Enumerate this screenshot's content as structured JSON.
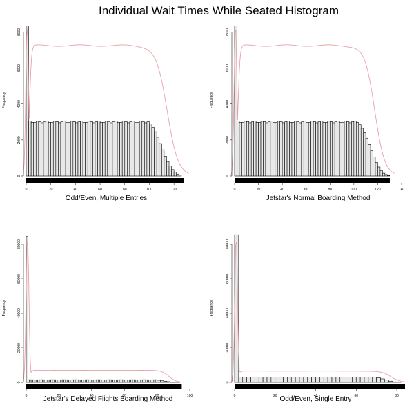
{
  "figure": {
    "title": "Individual Wait Times While Seated Histogram",
    "density_color": "#e8a0a8",
    "bar_fill": "#e8e8e8",
    "bar_stroke": "#000000"
  },
  "chart_data": [
    {
      "type": "bar",
      "title": "",
      "xlabel": "Odd/Even, Multiple Entries",
      "ylabel": "Frequency",
      "xlim": [
        0,
        130
      ],
      "ylim": [
        0,
        8400
      ],
      "xticks": [
        0,
        20,
        40,
        60,
        80,
        100,
        120
      ],
      "yticks": [
        0,
        2000,
        4000,
        6000,
        8000
      ],
      "bin_width": 2,
      "first_bin": {
        "x0": 0,
        "x1": 2,
        "value": 8350
      },
      "plateau": {
        "from": 2,
        "to": 100,
        "value": 3000
      },
      "tail": [
        {
          "x0": 100,
          "x1": 102,
          "value": 2900
        },
        {
          "x0": 102,
          "x1": 104,
          "value": 2700
        },
        {
          "x0": 104,
          "x1": 106,
          "value": 2450
        },
        {
          "x0": 106,
          "x1": 108,
          "value": 2150
        },
        {
          "x0": 108,
          "x1": 110,
          "value": 1800
        },
        {
          "x0": 110,
          "x1": 112,
          "value": 1450
        },
        {
          "x0": 112,
          "x1": 114,
          "value": 1100
        },
        {
          "x0": 114,
          "x1": 116,
          "value": 800
        },
        {
          "x0": 116,
          "x1": 118,
          "value": 550
        },
        {
          "x0": 118,
          "x1": 120,
          "value": 350
        },
        {
          "x0": 120,
          "x1": 122,
          "value": 200
        },
        {
          "x0": 122,
          "x1": 124,
          "value": 100
        },
        {
          "x0": 124,
          "x1": 126,
          "value": 50
        }
      ],
      "density_peak": 8400,
      "density_plateau": 7250,
      "density_end": 132,
      "rug_end": 128
    },
    {
      "type": "bar",
      "title": "",
      "xlabel": "Jetstar's Normal Boarding Method",
      "ylabel": "Frequency",
      "xlim": [
        0,
        140
      ],
      "ylim": [
        0,
        8400
      ],
      "xticks": [
        0,
        20,
        40,
        60,
        80,
        100,
        120,
        140
      ],
      "yticks": [
        0,
        2000,
        4000,
        6000,
        8000
      ],
      "bin_width": 2,
      "first_bin": {
        "x0": 0,
        "x1": 2,
        "value": 8350
      },
      "plateau": {
        "from": 2,
        "to": 104,
        "value": 3000
      },
      "tail": [
        {
          "x0": 104,
          "x1": 106,
          "value": 2850
        },
        {
          "x0": 106,
          "x1": 108,
          "value": 2650
        },
        {
          "x0": 108,
          "x1": 110,
          "value": 2400
        },
        {
          "x0": 110,
          "x1": 112,
          "value": 2100
        },
        {
          "x0": 112,
          "x1": 114,
          "value": 1750
        },
        {
          "x0": 114,
          "x1": 116,
          "value": 1400
        },
        {
          "x0": 116,
          "x1": 118,
          "value": 1050
        },
        {
          "x0": 118,
          "x1": 120,
          "value": 750
        },
        {
          "x0": 120,
          "x1": 122,
          "value": 500
        },
        {
          "x0": 122,
          "x1": 124,
          "value": 300
        },
        {
          "x0": 124,
          "x1": 126,
          "value": 150
        },
        {
          "x0": 126,
          "x1": 128,
          "value": 80
        },
        {
          "x0": 128,
          "x1": 130,
          "value": 30
        }
      ],
      "density_peak": 8400,
      "density_plateau": 7250,
      "density_end": 134,
      "rug_end": 130
    },
    {
      "type": "bar",
      "title": "",
      "xlabel": "Jetstar's Delayed Flights Boarding Method",
      "ylabel": "Frequency",
      "xlim": [
        0,
        100
      ],
      "ylim": [
        0,
        86000
      ],
      "xticks": [
        0,
        20,
        40,
        60,
        80,
        100
      ],
      "yticks": [
        0,
        20000,
        40000,
        60000,
        80000
      ],
      "bin_width": 1,
      "first_bin": {
        "x0": 0,
        "x1": 1,
        "value": 84500
      },
      "plateau": {
        "from": 1,
        "to": 80,
        "value": 1500
      },
      "tail": [
        {
          "x0": 80,
          "x1": 82,
          "value": 1200
        },
        {
          "x0": 82,
          "x1": 84,
          "value": 900
        },
        {
          "x0": 84,
          "x1": 86,
          "value": 650
        },
        {
          "x0": 86,
          "x1": 88,
          "value": 400
        },
        {
          "x0": 88,
          "x1": 90,
          "value": 250
        },
        {
          "x0": 90,
          "x1": 92,
          "value": 120
        },
        {
          "x0": 92,
          "x1": 94,
          "value": 60
        }
      ],
      "density_peak": 85000,
      "density_plateau": 7000,
      "density_end": 96,
      "rug_end": 95
    },
    {
      "type": "bar",
      "title": "",
      "xlabel": "Odd/Even, Single Entry",
      "ylabel": "Frequency",
      "xlim": [
        0,
        80
      ],
      "ylim": [
        0,
        86000
      ],
      "xticks": [
        0,
        20,
        40,
        60,
        80
      ],
      "yticks": [
        0,
        20000,
        40000,
        60000,
        80000
      ],
      "bin_width": 2,
      "first_bin": {
        "x0": 0,
        "x1": 2,
        "value": 85500
      },
      "plateau": {
        "from": 2,
        "to": 70,
        "value": 3000
      },
      "tail": [
        {
          "x0": 70,
          "x1": 72,
          "value": 2600
        },
        {
          "x0": 72,
          "x1": 74,
          "value": 2000
        },
        {
          "x0": 74,
          "x1": 76,
          "value": 1300
        },
        {
          "x0": 76,
          "x1": 78,
          "value": 700
        },
        {
          "x0": 78,
          "x1": 80,
          "value": 300
        },
        {
          "x0": 80,
          "x1": 82,
          "value": 100
        }
      ],
      "density_peak": 85000,
      "density_plateau": 6500,
      "density_end": 86,
      "rug_end": 84
    }
  ]
}
